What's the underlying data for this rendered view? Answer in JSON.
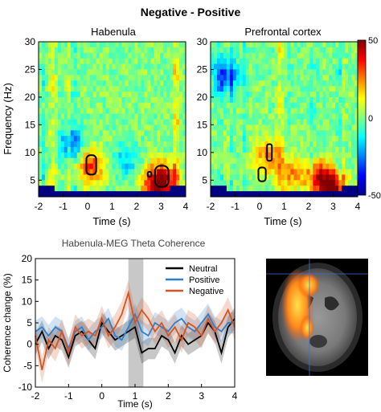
{
  "figure_title": "Negative - Positive",
  "colors": {
    "neutral": "#000000",
    "positive": "#2f7fc9",
    "negative": "#d8531f",
    "shade": "#c8c8c8"
  },
  "chart_data": [
    {
      "type": "heatmap",
      "title": "Habenula",
      "xlabel": "Time (s)",
      "ylabel": "Frequency (Hz)",
      "xlim": [
        -2,
        4
      ],
      "ylim": [
        2,
        30
      ],
      "xticks": [
        "-2",
        "-1",
        "0",
        "1",
        "2",
        "3",
        "4"
      ],
      "yticks": [
        "5",
        "10",
        "15",
        "20",
        "25",
        "30"
      ],
      "colormap": "jet",
      "hotspots": [
        {
          "t": 0.15,
          "f": 7.5,
          "v": 32
        },
        {
          "t": 3.1,
          "f": 5.0,
          "v": 38
        },
        {
          "t": 2.7,
          "f": 4.0,
          "v": 30
        },
        {
          "t": -0.7,
          "f": 11.5,
          "v": -22
        },
        {
          "t": 1.6,
          "f": 8.5,
          "v": -16
        }
      ],
      "significant_clusters": [
        {
          "t": [
            -0.05,
            0.35
          ],
          "f": [
            6,
            9.5
          ]
        },
        {
          "t": [
            2.45,
            2.6
          ],
          "f": [
            5.6,
            6.5
          ]
        },
        {
          "t": [
            2.75,
            3.3
          ],
          "f": [
            3.8,
            7.6
          ]
        }
      ]
    },
    {
      "type": "heatmap",
      "title": "Prefrontal cortex",
      "xlabel": "Time (s)",
      "xlim": [
        -2,
        4
      ],
      "ylim": [
        2,
        30
      ],
      "xticks": [
        "-2",
        "-1",
        "0",
        "1",
        "2",
        "3",
        "4"
      ],
      "yticks": [
        "5",
        "10",
        "15",
        "20",
        "25",
        "30"
      ],
      "colormap": "jet",
      "colorbar": {
        "ticks": [
          "50",
          "0",
          "-50"
        ],
        "range": [
          -50,
          50
        ]
      },
      "hotspots": [
        {
          "t": 3.0,
          "f": 3.5,
          "v": 48
        },
        {
          "t": 2.4,
          "f": 5.5,
          "v": 35
        },
        {
          "t": 1.2,
          "f": 6.5,
          "v": 26
        },
        {
          "t": 0.3,
          "f": 9.5,
          "v": 24
        },
        {
          "t": -1.4,
          "f": 24,
          "v": -30
        }
      ],
      "significant_clusters": [
        {
          "t": [
            -0.05,
            0.25
          ],
          "f": [
            4.8,
            7.3
          ]
        },
        {
          "t": [
            0.3,
            0.5
          ],
          "f": [
            8.5,
            11.5
          ]
        }
      ]
    },
    {
      "type": "line",
      "title": "Habenula-MEG Theta Coherence",
      "xlabel": "Time (s)",
      "ylabel": "Coherence change (%)",
      "xlim": [
        -2,
        4
      ],
      "ylim": [
        -10,
        20
      ],
      "xticks": [
        "-2",
        "-1",
        "0",
        "1",
        "2",
        "3",
        "4"
      ],
      "yticks": [
        "20",
        "15",
        "10",
        "5",
        "0",
        "-5",
        "-10"
      ],
      "shaded_window": [
        0.8,
        1.25
      ],
      "legend": "top-right",
      "x": [
        -2,
        -1.8,
        -1.6,
        -1.4,
        -1.2,
        -1.0,
        -0.8,
        -0.6,
        -0.4,
        -0.2,
        0,
        0.2,
        0.4,
        0.6,
        0.8,
        1.0,
        1.2,
        1.4,
        1.6,
        1.8,
        2.0,
        2.2,
        2.4,
        2.6,
        2.8,
        3.0,
        3.2,
        3.4,
        3.6,
        3.8,
        4.0
      ],
      "series": [
        {
          "name": "Neutral",
          "values": [
            0,
            3,
            -1,
            2,
            1,
            -3,
            2,
            3,
            1,
            -1,
            5,
            3,
            1,
            2,
            3,
            4,
            -2,
            -1,
            -1,
            2,
            1,
            -2,
            2,
            0,
            1,
            2,
            5,
            3,
            -2,
            4,
            6
          ],
          "band": 2.5
        },
        {
          "name": "Positive",
          "values": [
            3,
            4,
            2,
            4,
            3,
            -1,
            3,
            4,
            1,
            3,
            4,
            6,
            2,
            1,
            4,
            7,
            3,
            2,
            5,
            4,
            3,
            5,
            6,
            4,
            3,
            5,
            7,
            4,
            3,
            5,
            5
          ],
          "band": 2.5
        },
        {
          "name": "Negative",
          "values": [
            2,
            -6,
            1,
            -1,
            3,
            -2,
            4,
            2,
            3,
            2,
            6,
            2,
            4,
            7,
            12,
            5,
            8,
            6,
            3,
            5,
            2,
            4,
            1,
            5,
            4,
            2,
            6,
            3,
            5,
            8,
            4
          ],
          "band": 3
        }
      ]
    }
  ]
}
